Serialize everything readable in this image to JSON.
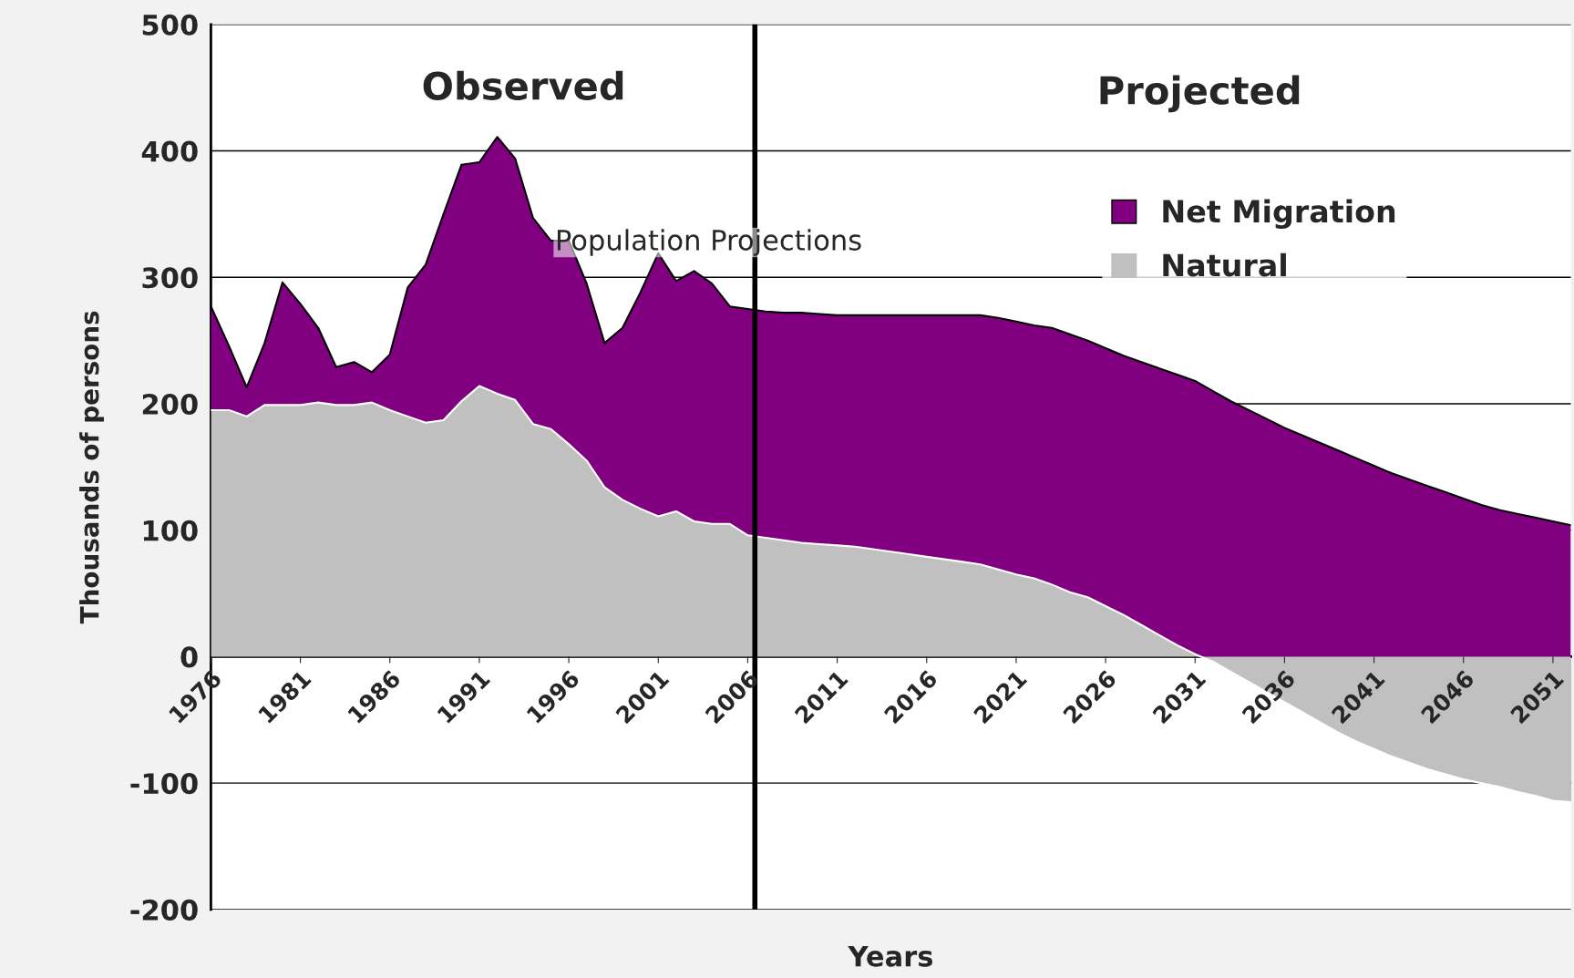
{
  "chart_data": {
    "type": "area",
    "stacked": true,
    "title": "Population Projections",
    "xlabel": "Years",
    "ylabel": "Thousands of persons",
    "x": [
      1976,
      1977,
      1978,
      1979,
      1980,
      1981,
      1982,
      1983,
      1984,
      1985,
      1986,
      1987,
      1988,
      1989,
      1990,
      1991,
      1992,
      1993,
      1994,
      1995,
      1996,
      1997,
      1998,
      1999,
      2000,
      2001,
      2002,
      2003,
      2004,
      2005,
      2006,
      2007,
      2008,
      2009,
      2010,
      2011,
      2012,
      2013,
      2014,
      2015,
      2016,
      2017,
      2018,
      2019,
      2020,
      2021,
      2022,
      2023,
      2024,
      2025,
      2026,
      2027,
      2028,
      2029,
      2030,
      2031,
      2032,
      2033,
      2034,
      2035,
      2036,
      2037,
      2038,
      2039,
      2040,
      2041,
      2042,
      2043,
      2044,
      2045,
      2046,
      2047,
      2048,
      2049,
      2050,
      2051,
      2052
    ],
    "series": [
      {
        "name": "Natural",
        "color": "#c0c0c0",
        "values": [
          195,
          195,
          190,
          199,
          199,
          199,
          201,
          199,
          199,
          201,
          195,
          190,
          185,
          187,
          202,
          214,
          208,
          203,
          184,
          180,
          168,
          155,
          134,
          124,
          117,
          111,
          115,
          107,
          105,
          105,
          96,
          94,
          92,
          90,
          89,
          88,
          87,
          85,
          83,
          81,
          79,
          77,
          75,
          73,
          69,
          65,
          62,
          57,
          51,
          47,
          40,
          33,
          25,
          17,
          9,
          2,
          -4,
          -12,
          -20,
          -28,
          -36,
          -44,
          -52,
          -60,
          -67,
          -73,
          -79,
          -84,
          -89,
          -93,
          -97,
          -100,
          -103,
          -107,
          -110,
          -114,
          -115
        ]
      },
      {
        "name": "Net Migration",
        "color": "#800080",
        "values": [
          82,
          51,
          23,
          49,
          97,
          80,
          59,
          30,
          34,
          24,
          44,
          102,
          125,
          163,
          187,
          177,
          203,
          191,
          163,
          149,
          161,
          140,
          114,
          136,
          171,
          208,
          182,
          198,
          190,
          172,
          179,
          179,
          180,
          182,
          182,
          182,
          183,
          185,
          187,
          189,
          191,
          193,
          195,
          197,
          199,
          200,
          200,
          203,
          204,
          203,
          204,
          205,
          208,
          211,
          214,
          216,
          214,
          214,
          215,
          216,
          217,
          219,
          221,
          223,
          224,
          224,
          224,
          224,
          224,
          223,
          222,
          220,
          219,
          220,
          220,
          221,
          219
        ]
      }
    ],
    "xlim": [
      1976,
      2052
    ],
    "xticks": [
      1976,
      1981,
      1986,
      1991,
      1996,
      2001,
      2006,
      2011,
      2016,
      2021,
      2026,
      2031,
      2036,
      2041,
      2046,
      2051
    ],
    "ylim": [
      -200,
      500
    ],
    "yticks": [
      -200,
      -100,
      0,
      100,
      200,
      300,
      400,
      500
    ],
    "ref_lines": [
      {
        "axis": "x",
        "value": 2006.4,
        "color": "#000000"
      }
    ],
    "annotations": [
      "Observed",
      "Projected"
    ],
    "grid": "y",
    "legend": "top right"
  }
}
